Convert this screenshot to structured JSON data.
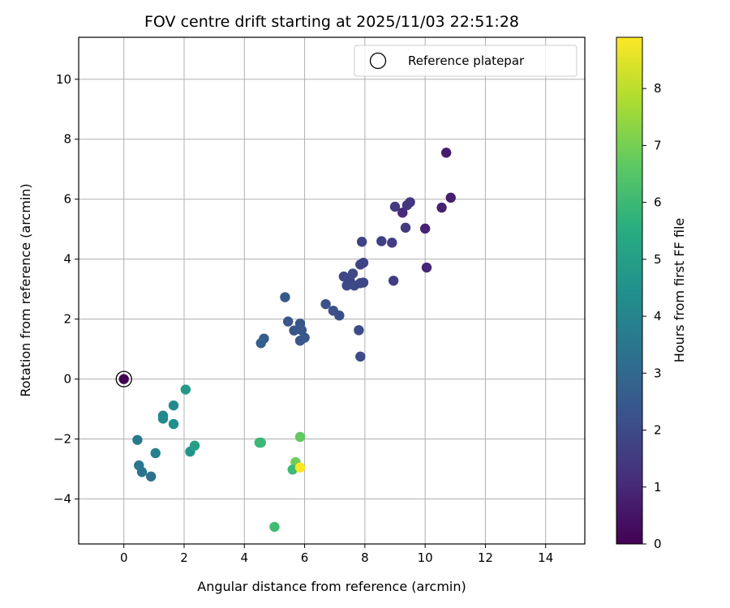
{
  "chart_data": {
    "type": "scatter",
    "title": "FOV centre drift starting at 2025/11/03 22:51:28",
    "xlabel": "Angular distance from reference (arcmin)",
    "ylabel": "Rotation from reference (arcmin)",
    "xlim": [
      -1.5,
      15.3
    ],
    "ylim": [
      -5.5,
      11.4
    ],
    "xticks": [
      0,
      2,
      4,
      6,
      8,
      10,
      12,
      14
    ],
    "yticks": [
      -4,
      -2,
      0,
      2,
      4,
      6,
      8,
      10
    ],
    "grid": true,
    "legend": {
      "location": "top-right",
      "entries": [
        "Reference platepar"
      ]
    },
    "reference_point": {
      "x": 0,
      "y": 0,
      "label": "Reference platepar"
    },
    "colorbar": {
      "label": "Hours from first FF file",
      "colormap": "viridis",
      "range": [
        0,
        8.9
      ],
      "ticks": [
        0,
        1,
        2,
        3,
        4,
        5,
        6,
        7,
        8
      ]
    },
    "points": [
      {
        "x": 0.0,
        "y": 0.0,
        "c": 0.0
      },
      {
        "x": 10.7,
        "y": 7.55,
        "c": 0.7
      },
      {
        "x": 10.85,
        "y": 6.05,
        "c": 0.75
      },
      {
        "x": 10.55,
        "y": 5.72,
        "c": 0.8
      },
      {
        "x": 10.0,
        "y": 5.02,
        "c": 0.85
      },
      {
        "x": 10.05,
        "y": 3.72,
        "c": 0.9
      },
      {
        "x": 9.25,
        "y": 5.55,
        "c": 1.0
      },
      {
        "x": 9.5,
        "y": 5.9,
        "c": 1.4
      },
      {
        "x": 9.4,
        "y": 5.8,
        "c": 1.45
      },
      {
        "x": 9.0,
        "y": 5.75,
        "c": 1.5
      },
      {
        "x": 9.35,
        "y": 5.05,
        "c": 1.5
      },
      {
        "x": 8.95,
        "y": 3.28,
        "c": 1.55
      },
      {
        "x": 8.9,
        "y": 4.55,
        "c": 1.6
      },
      {
        "x": 8.55,
        "y": 4.6,
        "c": 1.65
      },
      {
        "x": 7.9,
        "y": 4.58,
        "c": 1.75
      },
      {
        "x": 7.95,
        "y": 3.88,
        "c": 1.8
      },
      {
        "x": 7.85,
        "y": 3.82,
        "c": 1.8
      },
      {
        "x": 7.95,
        "y": 3.22,
        "c": 1.85
      },
      {
        "x": 7.85,
        "y": 3.2,
        "c": 1.85
      },
      {
        "x": 7.5,
        "y": 3.3,
        "c": 1.9
      },
      {
        "x": 7.3,
        "y": 3.42,
        "c": 1.9
      },
      {
        "x": 7.6,
        "y": 3.52,
        "c": 1.95
      },
      {
        "x": 7.65,
        "y": 3.12,
        "c": 1.95
      },
      {
        "x": 7.4,
        "y": 3.12,
        "c": 1.95
      },
      {
        "x": 7.8,
        "y": 1.63,
        "c": 2.0
      },
      {
        "x": 7.85,
        "y": 0.75,
        "c": 2.0
      },
      {
        "x": 7.15,
        "y": 2.12,
        "c": 2.1
      },
      {
        "x": 6.95,
        "y": 2.28,
        "c": 2.15
      },
      {
        "x": 6.7,
        "y": 2.5,
        "c": 2.2
      },
      {
        "x": 5.35,
        "y": 2.73,
        "c": 2.5
      },
      {
        "x": 5.45,
        "y": 1.92,
        "c": 2.4
      },
      {
        "x": 5.65,
        "y": 1.62,
        "c": 2.35
      },
      {
        "x": 5.85,
        "y": 1.85,
        "c": 2.35
      },
      {
        "x": 5.9,
        "y": 1.63,
        "c": 2.35
      },
      {
        "x": 6.0,
        "y": 1.38,
        "c": 2.35
      },
      {
        "x": 5.85,
        "y": 1.28,
        "c": 2.4
      },
      {
        "x": 4.65,
        "y": 1.35,
        "c": 2.6
      },
      {
        "x": 4.55,
        "y": 1.2,
        "c": 2.7
      },
      {
        "x": 2.05,
        "y": -0.35,
        "c": 4.8
      },
      {
        "x": 1.65,
        "y": -0.88,
        "c": 4.2
      },
      {
        "x": 1.3,
        "y": -1.22,
        "c": 4.1
      },
      {
        "x": 1.3,
        "y": -1.32,
        "c": 4.2
      },
      {
        "x": 1.65,
        "y": -1.5,
        "c": 4.4
      },
      {
        "x": 0.45,
        "y": -2.03,
        "c": 3.6
      },
      {
        "x": 1.05,
        "y": -2.47,
        "c": 3.8
      },
      {
        "x": 0.5,
        "y": -2.88,
        "c": 3.5
      },
      {
        "x": 0.6,
        "y": -3.1,
        "c": 3.4
      },
      {
        "x": 0.9,
        "y": -3.25,
        "c": 3.3
      },
      {
        "x": 2.2,
        "y": -2.42,
        "c": 4.6
      },
      {
        "x": 2.35,
        "y": -2.22,
        "c": 5.0
      },
      {
        "x": 4.5,
        "y": -2.12,
        "c": 5.9
      },
      {
        "x": 4.55,
        "y": -2.12,
        "c": 5.95
      },
      {
        "x": 5.85,
        "y": -1.93,
        "c": 6.7
      },
      {
        "x": 5.7,
        "y": -2.77,
        "c": 6.9
      },
      {
        "x": 5.6,
        "y": -3.02,
        "c": 6.0
      },
      {
        "x": 5.85,
        "y": -2.95,
        "c": 8.9
      },
      {
        "x": 5.0,
        "y": -4.93,
        "c": 6.1
      }
    ]
  }
}
